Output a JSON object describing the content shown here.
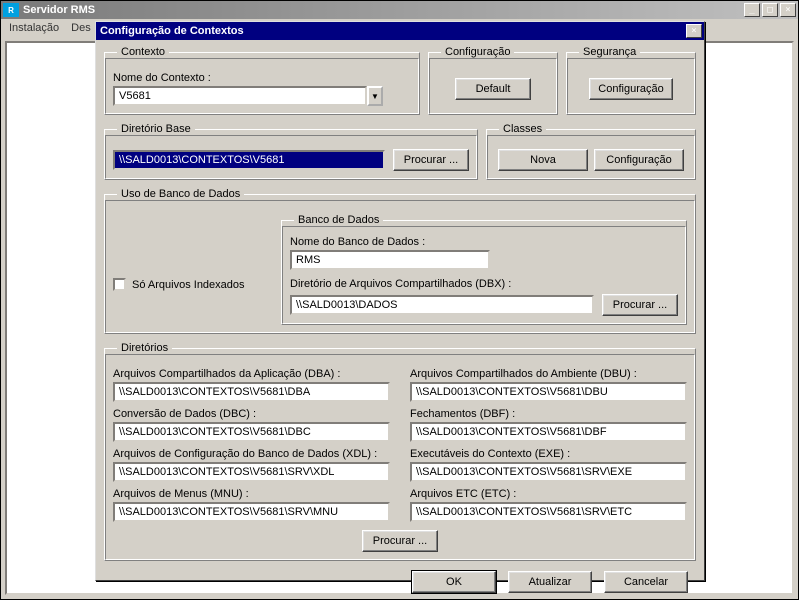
{
  "outerWindow": {
    "title": "Servidor RMS",
    "menu": {
      "instalacao": "Instalação",
      "des": "Des"
    }
  },
  "dialog": {
    "title": "Configuração de Contextos",
    "contexto": {
      "legend": "Contexto",
      "nameLabel": "Nome do Contexto :",
      "nameValue": "V5681"
    },
    "configuracao": {
      "legend": "Configuração",
      "defaultBtn": "Default"
    },
    "seguranca": {
      "legend": "Segurança",
      "configBtn": "Configuração"
    },
    "dirBase": {
      "legend": "Diretório Base",
      "value": "\\\\SALD0013\\CONTEXTOS\\V5681",
      "browseBtn": "Procurar ..."
    },
    "classes": {
      "legend": "Classes",
      "novaBtn": "Nova",
      "configBtn": "Configuração"
    },
    "uso": {
      "legend": "Uso de Banco de Dados",
      "onlyIndexed": "Só Arquivos Indexados"
    },
    "banco": {
      "legend": "Banco de Dados",
      "nameLabel": "Nome do Banco de Dados :",
      "nameValue": "RMS",
      "dbxLabel": "Diretório de Arquivos Compartilhados (DBX) :",
      "dbxValue": "\\\\SALD0013\\DADOS",
      "browseBtn": "Procurar ..."
    },
    "diretorios": {
      "legend": "Diretórios",
      "items": [
        {
          "label": "Arquivos Compartilhados da Aplicação (DBA) :",
          "value": "\\\\SALD0013\\CONTEXTOS\\V5681\\DBA"
        },
        {
          "label": "Arquivos Compartilhados do Ambiente (DBU) :",
          "value": "\\\\SALD0013\\CONTEXTOS\\V5681\\DBU"
        },
        {
          "label": "Conversão de Dados (DBC) :",
          "value": "\\\\SALD0013\\CONTEXTOS\\V5681\\DBC"
        },
        {
          "label": "Fechamentos (DBF) :",
          "value": "\\\\SALD0013\\CONTEXTOS\\V5681\\DBF"
        },
        {
          "label": "Arquivos de Configuração do Banco de Dados (XDL) :",
          "value": "\\\\SALD0013\\CONTEXTOS\\V5681\\SRV\\XDL"
        },
        {
          "label": "Executáveis do Contexto (EXE) :",
          "value": "\\\\SALD0013\\CONTEXTOS\\V5681\\SRV\\EXE"
        },
        {
          "label": "Arquivos de Menus (MNU) :",
          "value": "\\\\SALD0013\\CONTEXTOS\\V5681\\SRV\\MNU"
        },
        {
          "label": "Arquivos ETC (ETC) :",
          "value": "\\\\SALD0013\\CONTEXTOS\\V5681\\SRV\\ETC"
        }
      ],
      "browseBtn": "Procurar ..."
    },
    "buttons": {
      "ok": "OK",
      "atualizar": "Atualizar",
      "cancelar": "Cancelar"
    }
  }
}
